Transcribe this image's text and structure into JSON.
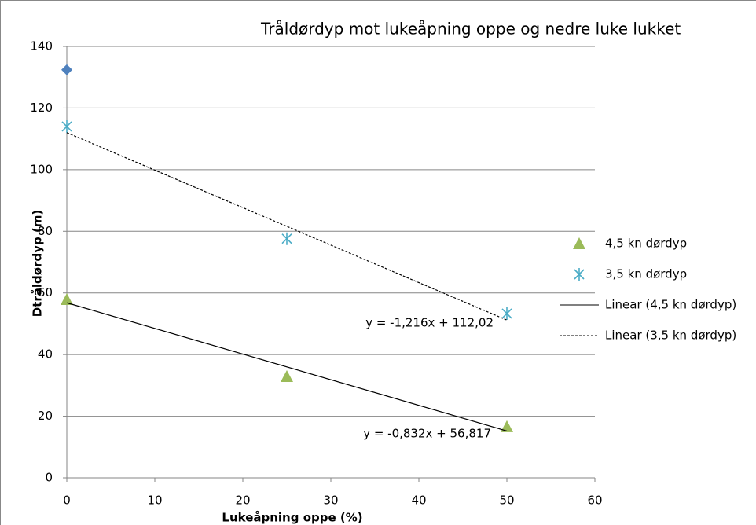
{
  "chart_data": {
    "type": "scatter",
    "title": "Tråldørdyp mot lukeåpning oppe og nedre luke lukket",
    "xlabel": "Lukeåpning oppe (%)",
    "ylabel": "Dtråldørdyp (m)",
    "xlim": [
      0,
      60
    ],
    "xticks": [
      0,
      10,
      20,
      30,
      40,
      50,
      60
    ],
    "ylim": [
      0,
      140
    ],
    "yticks": [
      0,
      20,
      40,
      60,
      80,
      100,
      120,
      140
    ],
    "grid": true,
    "legend": "right",
    "series": [
      {
        "color": "#4f81bd",
        "marker": "diamond",
        "x": [
          0
        ],
        "values": [
          132.4
        ]
      },
      {
        "name": "4,5 kn dørdyp",
        "color": "#9bbb59",
        "marker": "triangle",
        "x": [
          0,
          25,
          50
        ],
        "values": [
          57.9,
          32.9,
          16.6
        ]
      },
      {
        "name": "3,5 kn dørdyp",
        "color": "#4bacc6",
        "marker": "star",
        "x": [
          0,
          25,
          50
        ],
        "values": [
          114.0,
          77.6,
          53.3
        ]
      },
      {
        "name": "Linear (4,5 kn dørdyp)",
        "color": "#000000",
        "line": "solid",
        "x": [
          0,
          50
        ],
        "values": [
          56.8,
          15.2
        ]
      },
      {
        "name": "Linear (3,5 kn dørdyp)",
        "color": "#000000",
        "line": "dashed",
        "x": [
          0,
          50
        ],
        "values": [
          112.0,
          51.2
        ]
      }
    ],
    "annotations": [
      {
        "text": "y = -1,216x + 112,02"
      },
      {
        "text": "y = -0,832x + 56,817"
      }
    ]
  }
}
